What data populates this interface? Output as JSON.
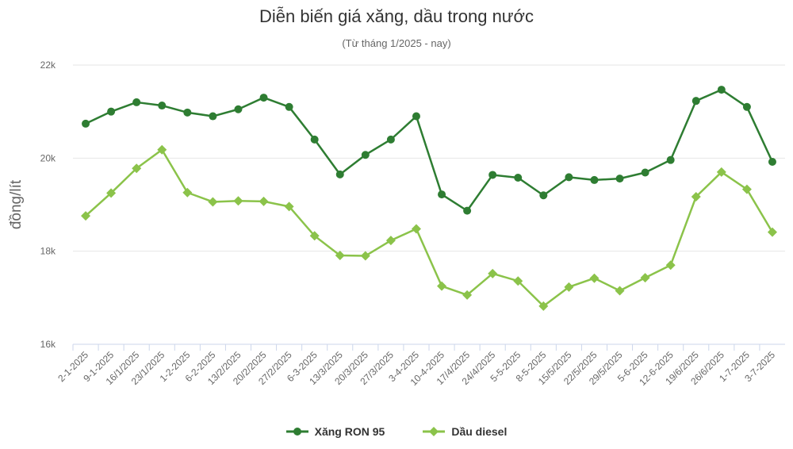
{
  "chart_data": {
    "type": "line",
    "title": "Diễn biến giá xăng, dầu trong nước",
    "subtitle": "(Từ tháng 1/2025 - nay)",
    "ylabel": "đồng/lít",
    "xlabel": "",
    "ylim": [
      16000,
      22000
    ],
    "yticks": [
      16000,
      18000,
      20000,
      22000
    ],
    "ytick_labels": [
      "16k",
      "18k",
      "20k",
      "22k"
    ],
    "grid": true,
    "legend_position": "bottom",
    "categories": [
      "2-1-2025",
      "9-1-2025",
      "16/1/2025",
      "23/1/2025",
      "1-2-2025",
      "6-2-2025",
      "13/2/2025",
      "20/2/2025",
      "27/2/2025",
      "6-3-2025",
      "13/3/2025",
      "20/3/2025",
      "27/3/2025",
      "3-4-2025",
      "10-4-2025",
      "17/4/2025",
      "24/4/2025",
      "5-5-2025",
      "8-5-2025",
      "15/5/2025",
      "22/5/2025",
      "29/5/2025",
      "5-6-2025",
      "12-6-2025",
      "19/6/2025",
      "26/6/2025",
      "1-7-2025",
      "3-7-2025"
    ],
    "series": [
      {
        "name": "Xăng RON 95",
        "color": "#2e7d32",
        "marker": "circle",
        "values": [
          20740,
          21000,
          21200,
          21130,
          20980,
          20900,
          21050,
          21300,
          21100,
          20400,
          19650,
          20070,
          20400,
          20900,
          19220,
          18870,
          19640,
          19580,
          19200,
          19590,
          19530,
          19560,
          19690,
          19960,
          21230,
          21470,
          21100,
          19920
        ]
      },
      {
        "name": "Dầu diesel",
        "color": "#8bc34a",
        "marker": "diamond",
        "values": [
          18760,
          19250,
          19780,
          20180,
          19260,
          19060,
          19080,
          19070,
          18960,
          18330,
          17910,
          17900,
          18230,
          18480,
          17250,
          17060,
          17520,
          17360,
          16820,
          17230,
          17420,
          17150,
          17430,
          17700,
          19170,
          19700,
          19330,
          18410
        ]
      }
    ]
  }
}
